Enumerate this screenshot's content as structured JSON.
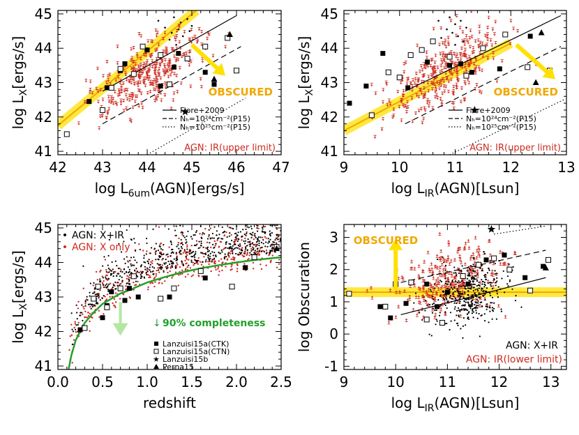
{
  "colors": {
    "black": "#000000",
    "red": "#cc2a1e",
    "yellow": "#ffe000",
    "orange": "#f0a800",
    "green": "#22a02a",
    "lightgreen": "#b4e6a4"
  },
  "chart_data": [
    {
      "id": "tl",
      "type": "scatter",
      "xlim": [
        42,
        47
      ],
      "ylim": [
        40.9,
        45.1
      ],
      "xticks": [
        "42",
        "43",
        "44",
        "45",
        "46",
        "47"
      ],
      "yticks": [
        "41",
        "42",
        "43",
        "44",
        "45"
      ],
      "xlabel_parts": [
        "log L",
        "6um",
        "(AGN)[ergs/s]"
      ],
      "ylabel_parts": [
        "log L",
        "X",
        "[ergs/s]"
      ],
      "annotation": "OBSCURED",
      "legend_lines": [
        {
          "style": "solid",
          "text": "Fiore+2009"
        },
        {
          "style": "dashed",
          "text": "Nₕ=10²⁴cm⁻²(P15)"
        },
        {
          "style": "dotted",
          "text": "Nₕ=10²⁵cm⁻²(P15)"
        }
      ],
      "legend_red": "AGN: IR(upper limit)",
      "lines": [
        {
          "style": "yellow_band",
          "x": [
            42,
            45.1
          ],
          "y": [
            41.75,
            45.1
          ]
        },
        {
          "style": "solid",
          "x": [
            43.0,
            46.0
          ],
          "y": [
            42.75,
            44.95
          ]
        },
        {
          "style": "dashed",
          "x": [
            43.0,
            46.1
          ],
          "y": [
            41.8,
            44.05
          ]
        },
        {
          "style": "dotted",
          "x": [
            44.0,
            46.2
          ],
          "y": [
            40.9,
            42.55
          ]
        }
      ],
      "arrow": {
        "x": [
          45.0,
          45.75
        ],
        "y": [
          44.1,
          43.2
        ]
      },
      "filled_squares": {
        "x": [
          42.7,
          43.1,
          43.4,
          43.5,
          44.0,
          44.3,
          44.6,
          44.7,
          45.3,
          45.5
        ],
        "y": [
          42.45,
          42.85,
          43.35,
          43.55,
          43.95,
          42.9,
          43.45,
          43.85,
          43.3,
          42.95
        ]
      },
      "open_squares": {
        "x": [
          42.2,
          43.0,
          43.2,
          43.4,
          43.7,
          43.9,
          44.3,
          44.5,
          44.9,
          45.3,
          45.8,
          46.0
        ],
        "y": [
          41.5,
          42.2,
          42.85,
          43.4,
          43.25,
          44.05,
          43.8,
          42.95,
          43.7,
          44.05,
          44.3,
          43.35
        ]
      },
      "stars": {
        "x": [
          44.85
        ],
        "y": [
          42.15
        ]
      },
      "triangles": {
        "x": [
          45.5,
          45.85
        ],
        "y": [
          43.1,
          44.4
        ]
      },
      "dots": {
        "x": [
          44.25,
          44.6,
          44.75,
          44.4,
          44.9,
          45.0,
          44.55,
          44.7,
          44.8,
          44.95,
          44.5,
          44.65
        ],
        "y": [
          44.8,
          44.9,
          44.75,
          44.6,
          44.85,
          44.65,
          44.45,
          44.55,
          44.35,
          44.5,
          44.25,
          44.1
        ]
      },
      "red_cloud": {
        "n": 330,
        "seed": 11,
        "x_center": 44.0,
        "x_spread": 1.1,
        "slope": 0.7,
        "intercept": 43.3,
        "x_ref": 44.0,
        "y_spread": 0.5,
        "xmin": 42.05,
        "xmax": 46.2
      }
    },
    {
      "id": "tr",
      "type": "scatter",
      "xlim": [
        9,
        13
      ],
      "ylim": [
        40.9,
        45.1
      ],
      "xticks": [
        "9",
        "10",
        "11",
        "12",
        "13"
      ],
      "yticks": [
        "41",
        "42",
        "43",
        "44",
        "45"
      ],
      "xlabel_parts": [
        "log L",
        "IR",
        "(AGN)[Lsun]"
      ],
      "ylabel_parts": [
        "log L",
        "X",
        "[ergs/s]"
      ],
      "annotation": "OBSCURED",
      "legend_lines": [
        {
          "style": "solid",
          "text": "Fiore+2009"
        },
        {
          "style": "dashed",
          "text": "Nₕ=10²⁴cm⁻²(P15)"
        },
        {
          "style": "dotted",
          "text": "Nₕ=10²⁵cm⁻²(P15)"
        }
      ],
      "legend_red": "AGN: IR(upper limit)",
      "lines": [
        {
          "style": "yellow_band",
          "x": [
            9,
            12.0
          ],
          "y": [
            41.6,
            44.15
          ]
        },
        {
          "style": "solid",
          "x": [
            10.1,
            12.9
          ],
          "y": [
            42.75,
            44.95
          ]
        },
        {
          "style": "dashed",
          "x": [
            10.1,
            12.9
          ],
          "y": [
            41.8,
            44.05
          ]
        },
        {
          "style": "dotted",
          "x": [
            10.9,
            12.95
          ],
          "y": [
            40.9,
            42.5
          ]
        }
      ],
      "arrow": {
        "x": [
          12.1,
          12.8
        ],
        "y": [
          44.1,
          43.1
        ]
      },
      "filled_squares": {
        "x": [
          9.1,
          9.4,
          9.7,
          10.15,
          10.5,
          10.9,
          11.1,
          11.3,
          11.8,
          12.35
        ],
        "y": [
          42.4,
          42.9,
          43.85,
          42.85,
          43.6,
          43.5,
          43.55,
          43.3,
          43.4,
          44.35
        ]
      },
      "open_squares": {
        "x": [
          9.5,
          9.8,
          10.0,
          10.2,
          10.4,
          10.6,
          10.9,
          11.2,
          11.5,
          11.9,
          12.3,
          12.7
        ],
        "y": [
          42.05,
          43.3,
          43.15,
          43.8,
          43.95,
          44.2,
          43.75,
          43.2,
          44.0,
          44.4,
          43.45,
          43.35
        ]
      },
      "stars": {
        "x": [
          11.35
        ],
        "y": [
          42.2
        ]
      },
      "triangles": {
        "x": [
          12.45,
          12.55
        ],
        "y": [
          43.0,
          44.45
        ]
      },
      "dots": {
        "x": [
          10.7,
          10.9,
          11.0,
          10.85,
          11.1,
          11.2,
          10.95,
          11.05,
          10.75,
          11.15,
          11.0
        ],
        "y": [
          44.8,
          44.9,
          44.7,
          44.55,
          44.8,
          44.6,
          44.45,
          44.35,
          44.3,
          44.2,
          44.1
        ]
      },
      "red_cloud": {
        "n": 330,
        "seed": 23,
        "x_center": 10.8,
        "x_spread": 0.9,
        "slope": 0.8,
        "intercept": 43.3,
        "x_ref": 10.8,
        "y_spread": 0.5,
        "xmin": 9.05,
        "xmax": 12.9
      }
    },
    {
      "id": "bl",
      "type": "scatter",
      "xlim": [
        0.0,
        2.5
      ],
      "ylim": [
        40.9,
        45.1
      ],
      "xticks": [
        "0.0",
        "0.5",
        "1.0",
        "1.5",
        "2.0",
        "2.5"
      ],
      "yticks": [
        "41",
        "42",
        "43",
        "44",
        "45"
      ],
      "xlabel_parts": [
        "redshift",
        "",
        ""
      ],
      "ylabel_parts": [
        "log L",
        "X",
        "[ergs/s]"
      ],
      "legend_top": [
        {
          "color": "black",
          "text": "AGN: X+IR"
        },
        {
          "color": "red",
          "text": "AGN: X only"
        }
      ],
      "annotation": "90% completeness",
      "legend_markers": [
        {
          "marker": "filled_square",
          "text": "Lanzuisi15a(CTK)"
        },
        {
          "marker": "open_square",
          "text": "Lanzuisi15a(CTN)"
        },
        {
          "marker": "star",
          "text": "Lanzuisi15b"
        },
        {
          "marker": "triangle",
          "text": "Perna15"
        }
      ],
      "completeness_curve": {
        "z": [
          0.12,
          0.15,
          0.2,
          0.25,
          0.3,
          0.4,
          0.5,
          0.6,
          0.7,
          0.8,
          1.0,
          1.2,
          1.4,
          1.6,
          1.8,
          2.0,
          2.2,
          2.5
        ],
        "y": [
          40.9,
          41.3,
          41.75,
          42.0,
          42.25,
          42.55,
          42.8,
          42.95,
          43.1,
          43.2,
          43.42,
          43.58,
          43.72,
          43.83,
          43.92,
          44.0,
          44.07,
          44.15
        ]
      },
      "filled_squares": {
        "x": [
          0.25,
          0.5,
          0.55,
          0.6,
          0.75,
          0.8,
          0.9,
          1.25,
          1.65,
          2.1
        ],
        "y": [
          42.05,
          42.4,
          42.75,
          43.15,
          42.9,
          43.25,
          43.0,
          43.0,
          43.55,
          43.85
        ]
      },
      "open_squares": {
        "x": [
          0.3,
          0.4,
          0.45,
          0.55,
          0.7,
          0.85,
          1.15,
          1.3,
          1.6,
          1.95,
          2.2,
          2.45
        ],
        "y": [
          42.1,
          42.95,
          43.3,
          42.7,
          43.25,
          43.6,
          42.95,
          43.25,
          43.75,
          43.3,
          44.15,
          44.45
        ]
      },
      "stars": {
        "x": [],
        "y": []
      },
      "triangles": {
        "x": [
          2.45
        ],
        "y": [
          44.4
        ]
      },
      "black_cloud": {
        "n": 650,
        "seed": 37
      },
      "red_cloud_z": {
        "n": 500,
        "seed": 53
      }
    },
    {
      "id": "br",
      "type": "scatter",
      "xlim": [
        9,
        13.3
      ],
      "ylim": [
        -1.1,
        3.4
      ],
      "xticks": [
        "9",
        "10",
        "11",
        "12",
        "13"
      ],
      "yticks": [
        "-1",
        "0",
        "1",
        "2",
        "3"
      ],
      "xlabel_parts": [
        "log L",
        "IR",
        "(AGN)[Lsun]"
      ],
      "ylabel_parts": [
        "log Obscuration",
        "",
        ""
      ],
      "annotation": "OBSCURED",
      "legend_black": "AGN: X+IR",
      "legend_red": "AGN: IR(lower limit)",
      "lines": [
        {
          "style": "yellow_hband",
          "x": [
            9,
            13.3
          ],
          "y": [
            1.3,
            1.3
          ]
        },
        {
          "style": "solid",
          "x": [
            10.1,
            12.9
          ],
          "y": [
            0.6,
            1.75
          ]
        },
        {
          "style": "dashed",
          "x": [
            10.1,
            12.9
          ],
          "y": [
            1.6,
            2.6
          ]
        },
        {
          "style": "dotted",
          "x": [
            11.9,
            12.9
          ],
          "y": [
            3.1,
            3.35
          ]
        }
      ],
      "arrow": {
        "x": [
          10.0,
          10.0
        ],
        "y": [
          1.35,
          2.95
        ]
      },
      "filled_squares": {
        "x": [
          9.7,
          9.9,
          10.2,
          10.6,
          10.8,
          11.0,
          11.4,
          11.75,
          12.1,
          12.5,
          12.85
        ],
        "y": [
          0.85,
          0.5,
          0.95,
          1.55,
          0.85,
          1.3,
          1.55,
          2.3,
          2.45,
          1.75,
          2.1
        ]
      },
      "open_squares": {
        "x": [
          9.8,
          10.0,
          10.3,
          10.6,
          10.9,
          11.3,
          11.6,
          11.9,
          12.2,
          12.6,
          12.95,
          9.1
        ],
        "y": [
          0.85,
          1.55,
          1.6,
          0.45,
          0.35,
          1.8,
          2.15,
          2.35,
          2.0,
          1.35,
          2.3,
          1.25
        ]
      },
      "stars": {
        "x": [
          11.85
        ],
        "y": [
          3.25
        ]
      },
      "triangles": {
        "x": [
          12.9
        ],
        "y": [
          2.05
        ]
      },
      "black_cloud": {
        "n": 450,
        "seed": 71,
        "x_center": 11.4,
        "x_spread": 0.6,
        "slope": 0.35,
        "intercept": 1.25,
        "x_ref": 11.4,
        "y_spread": 0.45
      },
      "red_cloud": {
        "n": 280,
        "seed": 83,
        "x_center": 11.0,
        "x_spread": 0.9,
        "slope": 0.4,
        "intercept": 1.6,
        "x_ref": 11.0,
        "y_spread": 0.55,
        "xmin": 9.1,
        "xmax": 13.0
      }
    }
  ]
}
